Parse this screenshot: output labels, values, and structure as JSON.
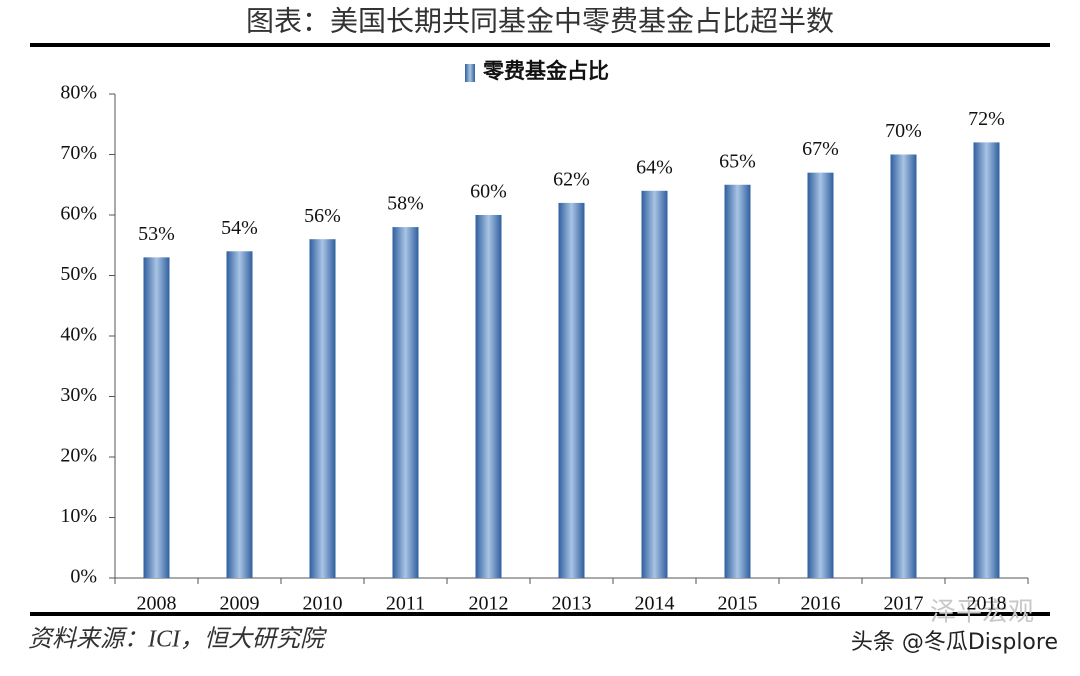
{
  "chart_data": {
    "type": "bar",
    "title": "图表：美国长期共同基金中零费基金占比超半数",
    "source": "资料来源：ICI，恒大研究院",
    "watermark": "头条 @冬瓜Displore",
    "watermark_faint": "泽平宏观",
    "categories": [
      "2008",
      "2009",
      "2010",
      "2011",
      "2012",
      "2013",
      "2014",
      "2015",
      "2016",
      "2017",
      "2018"
    ],
    "series": [
      {
        "name": "零费基金占比",
        "color": "#4a7ebb",
        "values": [
          53,
          54,
          56,
          58,
          60,
          62,
          64,
          65,
          67,
          70,
          72
        ],
        "value_labels": [
          "53%",
          "54%",
          "56%",
          "58%",
          "60%",
          "62%",
          "64%",
          "65%",
          "67%",
          "70%",
          "72%"
        ]
      }
    ],
    "ylim": [
      0,
      80
    ],
    "yticks": [
      {
        "value": 0,
        "label": "0%"
      },
      {
        "value": 10,
        "label": "10%"
      },
      {
        "value": 20,
        "label": "20%"
      },
      {
        "value": 30,
        "label": "30%"
      },
      {
        "value": 40,
        "label": "40%"
      },
      {
        "value": 50,
        "label": "50%"
      },
      {
        "value": 60,
        "label": "60%"
      },
      {
        "value": 70,
        "label": "70%"
      },
      {
        "value": 80,
        "label": "80%"
      }
    ],
    "legend": "top"
  }
}
